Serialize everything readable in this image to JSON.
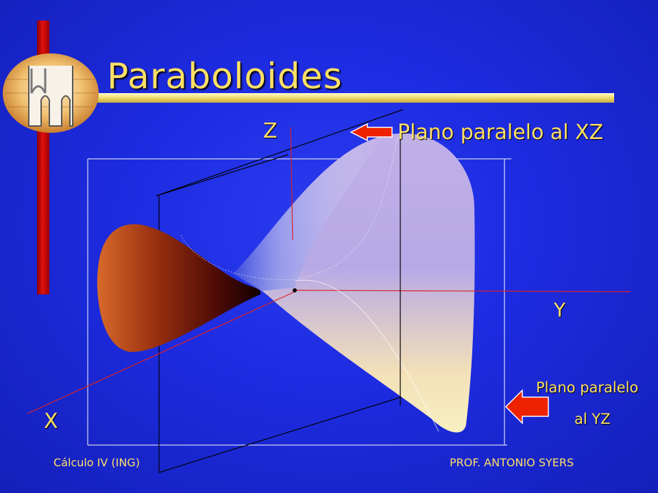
{
  "slide": {
    "title": "Paraboloides",
    "axes": {
      "z": "Z",
      "y": "Y",
      "x": "X"
    },
    "annotations": {
      "plane_xz": "Plano paralelo al XZ",
      "plane_yz_line1": "Plano paralelo",
      "plane_yz_line2": "al YZ"
    },
    "footer": {
      "left": "Cálculo IV (ING)",
      "right": "PROF. ANTONIO SYERS"
    }
  },
  "colors": {
    "background": "#1d2be0",
    "title": "#ffe066",
    "accent_bar": "#e01010",
    "arrow": "#ee2200"
  },
  "icons": [
    "university-logo",
    "arrow-left-icon"
  ]
}
